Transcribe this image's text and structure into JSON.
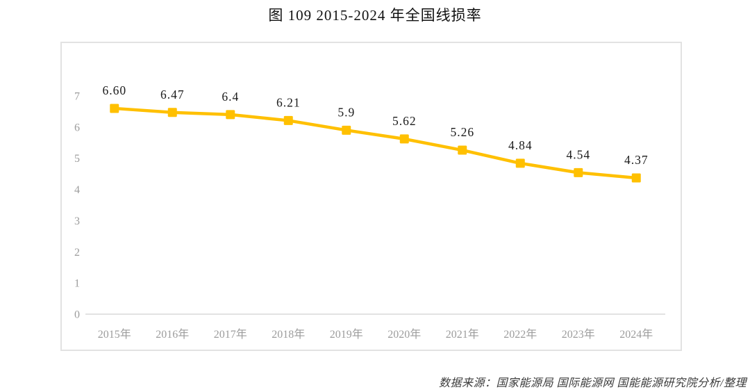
{
  "title": "图 109 2015-2024 年全国线损率",
  "source_note": "数据来源：国家能源局 国际能源网 国能能源研究院分析/整理",
  "colors": {
    "line": "#FFC000",
    "marker": "#FFC000",
    "axis_line": "#d9d9d9",
    "tick_label": "#9c9c9c",
    "value_label": "#1a1a1a",
    "frame_border": "#e2e2e2"
  },
  "chart_data": {
    "type": "line",
    "title": "图 109 2015-2024 年全国线损率",
    "categories": [
      "2015年",
      "2016年",
      "2017年",
      "2018年",
      "2019年",
      "2020年",
      "2021年",
      "2022年",
      "2023年",
      "2024年"
    ],
    "series": [
      {
        "name": "全国线损率",
        "values": [
          6.6,
          6.47,
          6.4,
          6.21,
          5.9,
          5.62,
          5.26,
          4.84,
          4.54,
          4.37
        ],
        "labels": [
          "6.60",
          "6.47",
          "6.4",
          "6.21",
          "5.9",
          "5.62",
          "5.26",
          "4.84",
          "4.54",
          "4.37"
        ],
        "color": "#FFC000",
        "marker": "square"
      }
    ],
    "xlabel": "",
    "ylabel": "",
    "y_ticks": [
      0,
      1,
      2,
      3,
      4,
      5,
      6,
      7
    ],
    "ylim": [
      0,
      7.8
    ],
    "grid": false,
    "legend": "none"
  }
}
